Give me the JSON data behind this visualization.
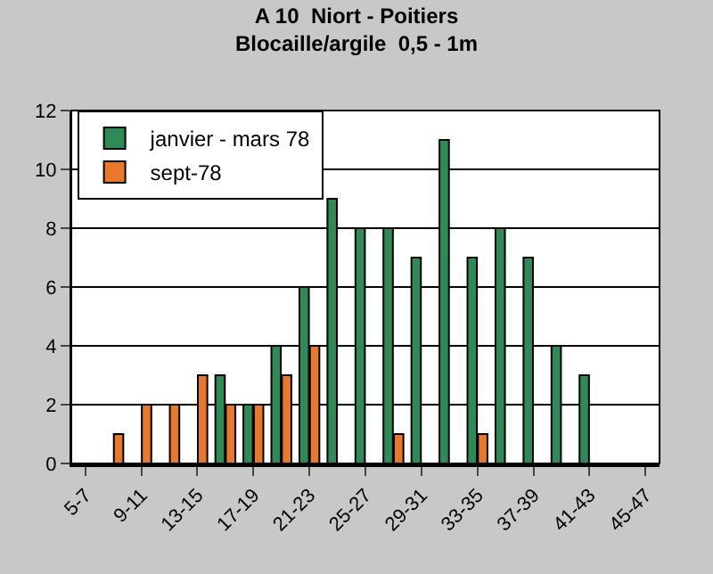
{
  "chart_data": {
    "type": "bar",
    "title": "A 10  Niort - Poitiers",
    "subtitle": "Blocaille/argile  0,5 - 1m",
    "categories": [
      "5-7",
      null,
      "9-11",
      null,
      "13-15",
      null,
      "17-19",
      null,
      "21-23",
      null,
      "25-27",
      null,
      "29-31",
      null,
      "33-35",
      null,
      "37-39",
      null,
      "41-43",
      null,
      "45-47"
    ],
    "series": [
      {
        "name": "janvier - mars 78",
        "color": "#2e8b57",
        "values": [
          null,
          null,
          null,
          null,
          null,
          3,
          2,
          4,
          6,
          9,
          8,
          8,
          7,
          11,
          7,
          8,
          7,
          4,
          3,
          null,
          null
        ]
      },
      {
        "name": "sept-78",
        "color": "#e8782a",
        "values": [
          null,
          1,
          2,
          2,
          3,
          2,
          2,
          3,
          4,
          null,
          null,
          1,
          null,
          null,
          1,
          null,
          null,
          null,
          null,
          null,
          null
        ]
      }
    ],
    "ylim": [
      0,
      12
    ],
    "yticks": [
      0,
      2,
      4,
      6,
      8,
      10,
      12
    ],
    "grid": "y",
    "legend": "top left"
  }
}
